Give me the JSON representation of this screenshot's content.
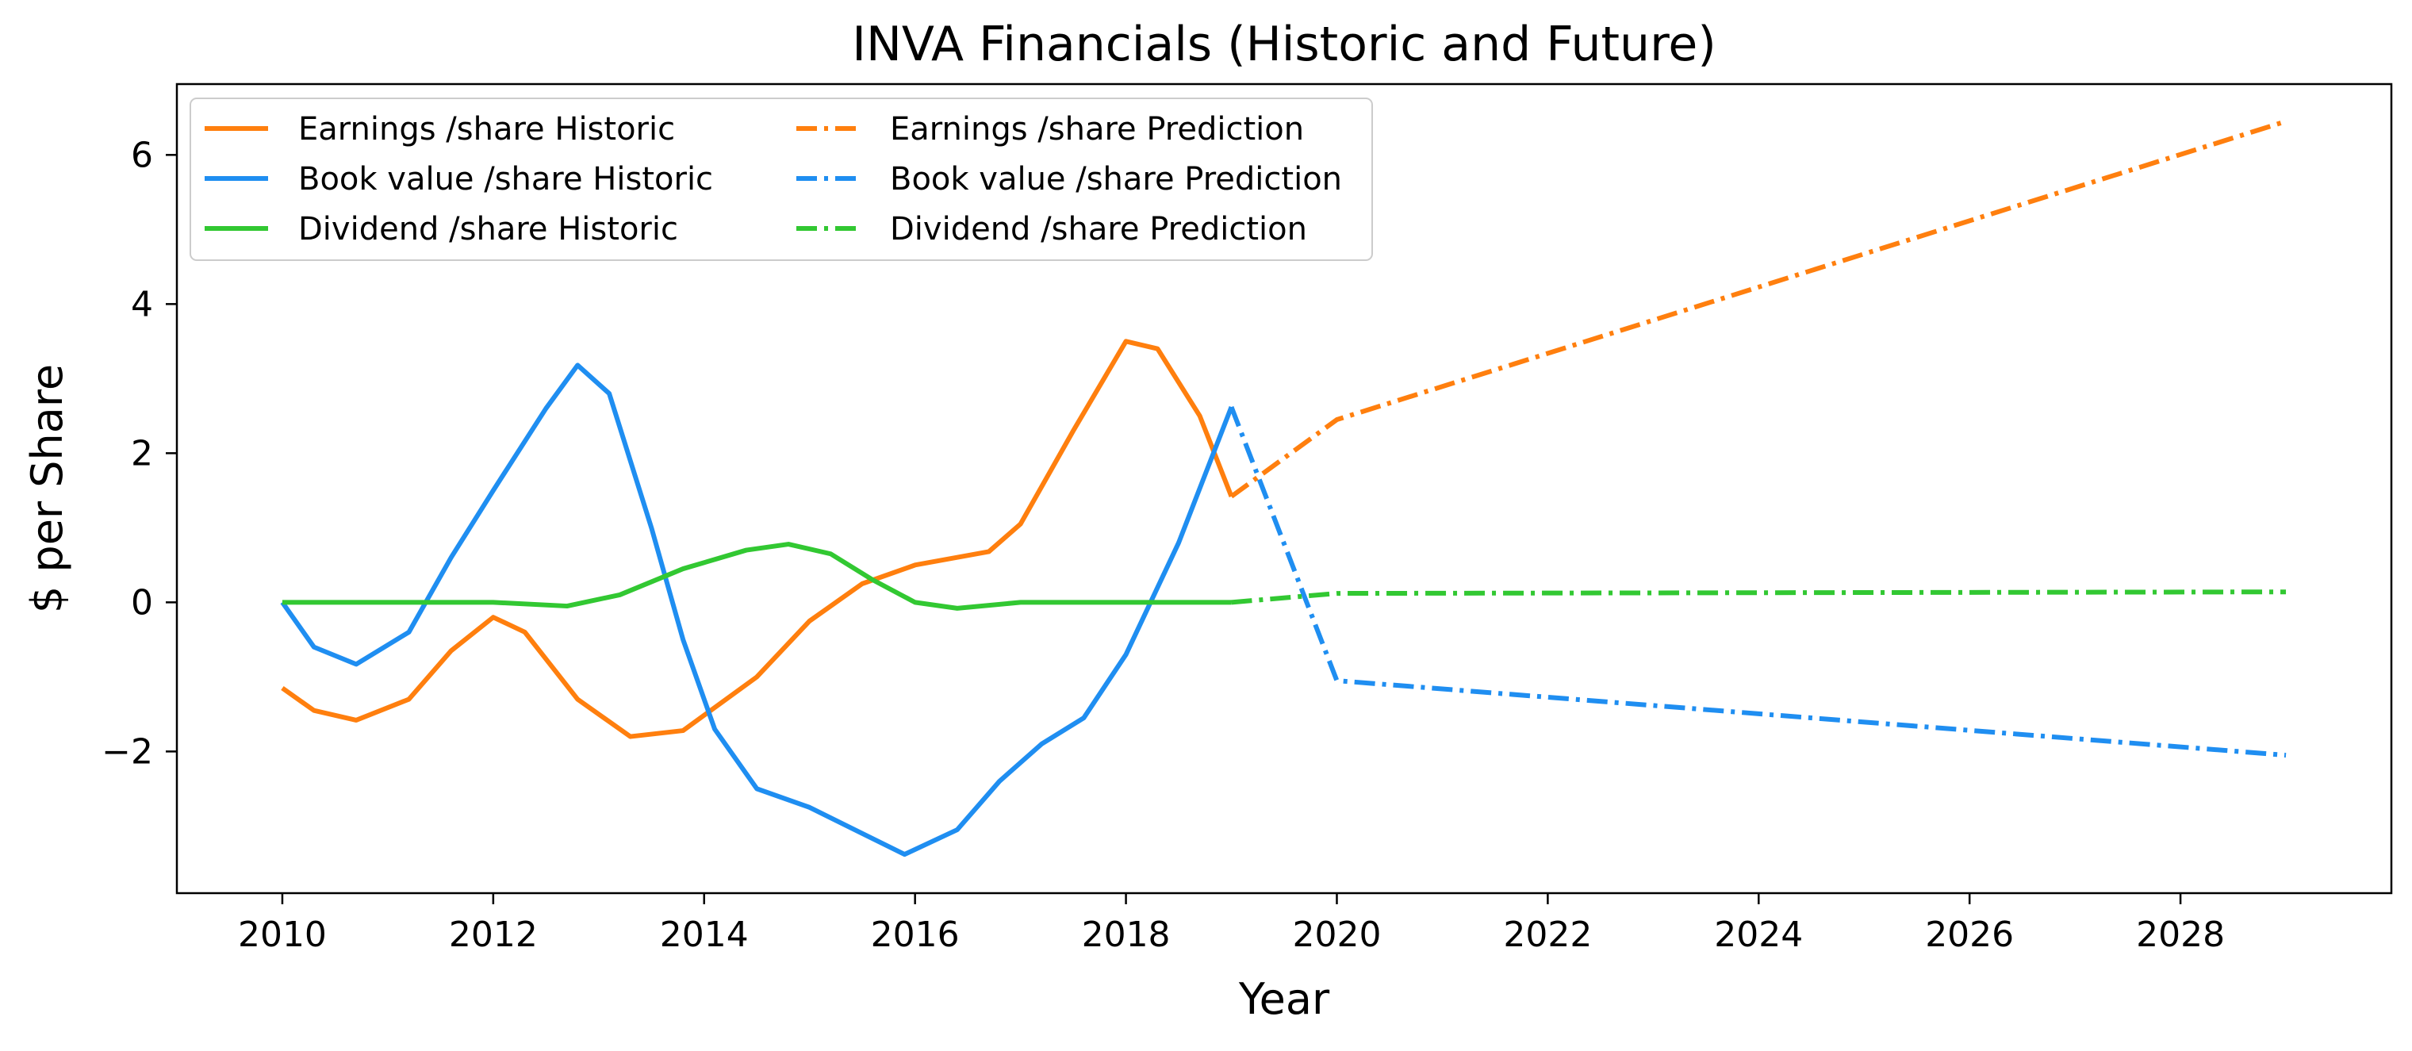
{
  "chart_data": {
    "type": "line",
    "title": "INVA Financials (Historic and Future)",
    "xlabel": "Year",
    "ylabel": "$ per Share",
    "xlim": [
      2009.0,
      2030.0
    ],
    "ylim": [
      -3.9,
      6.95
    ],
    "x_ticks": [
      2010,
      2012,
      2014,
      2016,
      2018,
      2020,
      2022,
      2024,
      2026,
      2028
    ],
    "y_ticks": [
      -2,
      0,
      2,
      4,
      6
    ],
    "y_tick_labels": [
      "−2",
      "0",
      "2",
      "4",
      "6"
    ],
    "grid": false,
    "legend_position": "upper-left",
    "legend_columns": 2,
    "series": [
      {
        "name": "Earnings /share Historic",
        "color": "#ff7f0e",
        "style": "solid",
        "points": [
          [
            2010,
            -1.15
          ],
          [
            2010.3,
            -1.45
          ],
          [
            2010.7,
            -1.58
          ],
          [
            2011.2,
            -1.3
          ],
          [
            2011.6,
            -0.65
          ],
          [
            2012.0,
            -0.2
          ],
          [
            2012.3,
            -0.4
          ],
          [
            2012.8,
            -1.3
          ],
          [
            2013.3,
            -1.8
          ],
          [
            2013.8,
            -1.72
          ],
          [
            2014.5,
            -1.0
          ],
          [
            2015.0,
            -0.25
          ],
          [
            2015.5,
            0.25
          ],
          [
            2016.0,
            0.5
          ],
          [
            2016.7,
            0.68
          ],
          [
            2017.0,
            1.05
          ],
          [
            2017.5,
            2.3
          ],
          [
            2018.0,
            3.5
          ],
          [
            2018.3,
            3.4
          ],
          [
            2018.7,
            2.5
          ],
          [
            2019.0,
            1.42
          ]
        ]
      },
      {
        "name": "Book value /share Historic",
        "color": "#1f8ef1",
        "style": "solid",
        "points": [
          [
            2010,
            0.0
          ],
          [
            2010.3,
            -0.6
          ],
          [
            2010.7,
            -0.83
          ],
          [
            2011.2,
            -0.4
          ],
          [
            2011.6,
            0.6
          ],
          [
            2012.0,
            1.5
          ],
          [
            2012.5,
            2.6
          ],
          [
            2012.8,
            3.18
          ],
          [
            2013.1,
            2.8
          ],
          [
            2013.5,
            1.0
          ],
          [
            2013.8,
            -0.5
          ],
          [
            2014.1,
            -1.7
          ],
          [
            2014.5,
            -2.5
          ],
          [
            2015.0,
            -2.75
          ],
          [
            2015.5,
            -3.1
          ],
          [
            2015.9,
            -3.38
          ],
          [
            2016.4,
            -3.05
          ],
          [
            2016.8,
            -2.4
          ],
          [
            2017.2,
            -1.9
          ],
          [
            2017.6,
            -1.55
          ],
          [
            2018.0,
            -0.7
          ],
          [
            2018.5,
            0.8
          ],
          [
            2019.0,
            2.62
          ]
        ]
      },
      {
        "name": "Dividend /share Historic",
        "color": "#32c832",
        "style": "solid",
        "points": [
          [
            2010,
            0.0
          ],
          [
            2011.0,
            0.0
          ],
          [
            2012.0,
            0.0
          ],
          [
            2012.7,
            -0.05
          ],
          [
            2013.2,
            0.1
          ],
          [
            2013.8,
            0.45
          ],
          [
            2014.4,
            0.7
          ],
          [
            2014.8,
            0.78
          ],
          [
            2015.2,
            0.65
          ],
          [
            2015.6,
            0.3
          ],
          [
            2016.0,
            0.0
          ],
          [
            2016.4,
            -0.08
          ],
          [
            2017.0,
            0.0
          ],
          [
            2018.0,
            0.0
          ],
          [
            2019.0,
            0.0
          ]
        ]
      },
      {
        "name": "Earnings /share Prediction",
        "color": "#ff7f0e",
        "style": "dashdot",
        "points": [
          [
            2019.0,
            1.42
          ],
          [
            2020.0,
            2.45
          ],
          [
            2029.0,
            6.45
          ]
        ]
      },
      {
        "name": "Book value /share Prediction",
        "color": "#1f8ef1",
        "style": "dashdot",
        "points": [
          [
            2019.0,
            2.62
          ],
          [
            2020.0,
            -1.05
          ],
          [
            2029.0,
            -2.05
          ]
        ]
      },
      {
        "name": "Dividend /share Prediction",
        "color": "#32c832",
        "style": "dashdot",
        "points": [
          [
            2019.0,
            0.0
          ],
          [
            2020.0,
            0.12
          ],
          [
            2029.0,
            0.14
          ]
        ]
      }
    ]
  }
}
